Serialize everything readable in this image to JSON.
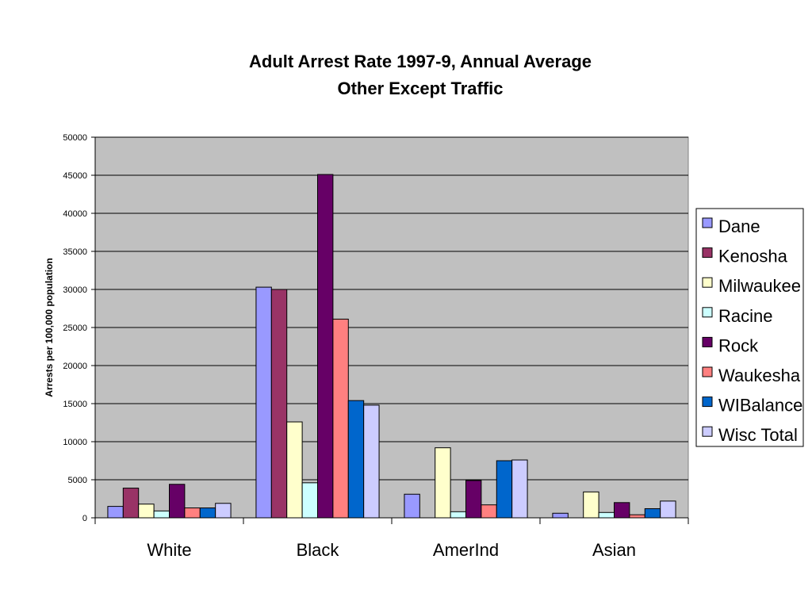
{
  "chart_data": {
    "type": "bar",
    "title": "Adult Arrest Rate 1997-9, Annual Average",
    "subtitle": "Other Except Traffic",
    "xlabel": "",
    "ylabel": "Arrests per 100,000 population",
    "ylim": [
      0,
      50000
    ],
    "yticks": [
      "0",
      "5000",
      "10000",
      "15000",
      "20000",
      "25000",
      "30000",
      "35000",
      "40000",
      "45000",
      "50000"
    ],
    "grid": true,
    "legend_position": "right",
    "categories": [
      "White",
      "Black",
      "AmerInd",
      "Asian"
    ],
    "series": [
      {
        "name": "Dane",
        "color": "#9999ff",
        "values": [
          1500,
          30300,
          3100,
          600
        ]
      },
      {
        "name": "Kenosha",
        "color": "#993366",
        "values": [
          3900,
          30000,
          0,
          0
        ]
      },
      {
        "name": "Milwaukee",
        "color": "#ffffcc",
        "values": [
          1800,
          12600,
          9200,
          3400
        ]
      },
      {
        "name": "Racine",
        "color": "#ccffff",
        "values": [
          900,
          4600,
          800,
          700
        ]
      },
      {
        "name": "Rock",
        "color": "#660066",
        "values": [
          4400,
          45100,
          4900,
          2000
        ]
      },
      {
        "name": "Waukesha",
        "color": "#ff8080",
        "values": [
          1300,
          26100,
          1700,
          400
        ]
      },
      {
        "name": "WIBalance",
        "color": "#0066cc",
        "values": [
          1300,
          15400,
          7500,
          1200
        ]
      },
      {
        "name": "Wisc Total",
        "color": "#ccccff",
        "values": [
          1900,
          14800,
          7600,
          2200
        ]
      }
    ],
    "plot_background": "#c0c0c0"
  }
}
